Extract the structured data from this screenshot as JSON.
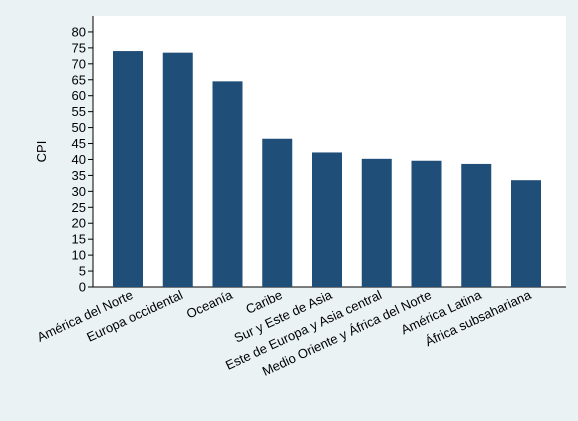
{
  "chart_data": {
    "type": "bar",
    "title": "",
    "xlabel": "",
    "ylabel": "CPI",
    "ylim": [
      0,
      85
    ],
    "yticks": [
      0,
      5,
      10,
      15,
      20,
      25,
      30,
      35,
      40,
      45,
      50,
      55,
      60,
      65,
      70,
      75,
      80
    ],
    "grid": false,
    "legend": "none",
    "bar_color": "#1f4e79",
    "categories": [
      "América del Norte",
      "Europa occidental",
      "Oceanía",
      "Caribe",
      "Sur y Este de Asia",
      "Este de Europa y Asia central",
      "Medio Oriente y África del Norte",
      "América Latina",
      "África subsahariana"
    ],
    "values": [
      74.0,
      73.5,
      64.5,
      46.5,
      42.2,
      40.2,
      39.6,
      38.6,
      33.5
    ]
  }
}
